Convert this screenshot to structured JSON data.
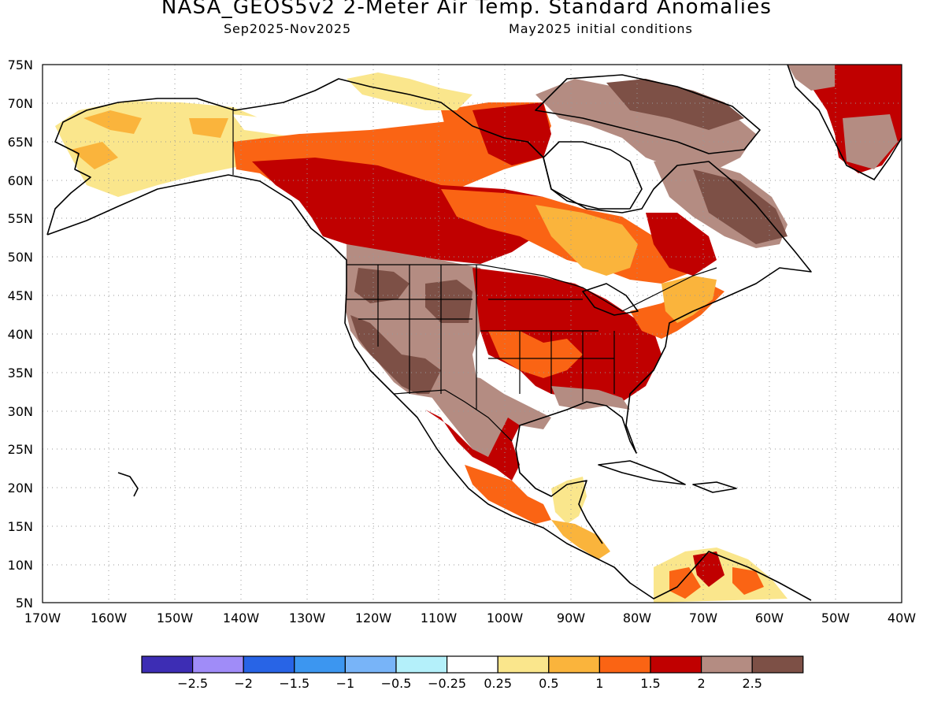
{
  "title": "NASA_GEOS5v2 2-Meter Air Temp. Standard Anomalies",
  "subtitle_left": "Sep2025-Nov2025",
  "subtitle_right": "May2025 initial conditions",
  "map": {
    "lon_range": [
      -170,
      -40
    ],
    "lat_range": [
      5,
      75
    ],
    "lat_ticks": [
      "75N",
      "70N",
      "65N",
      "60N",
      "55N",
      "50N",
      "45N",
      "40N",
      "35N",
      "30N",
      "25N",
      "20N",
      "15N",
      "10N",
      "5N"
    ],
    "lon_ticks": [
      "170W",
      "160W",
      "150W",
      "140W",
      "130W",
      "120W",
      "110W",
      "100W",
      "90W",
      "80W",
      "70W",
      "60W",
      "50W",
      "40W"
    ],
    "grid": "dotted"
  },
  "colorbar": {
    "colors": [
      "#3d2db4",
      "#a08cf8",
      "#2864e6",
      "#3c96f0",
      "#78b4f8",
      "#b4f0fa",
      "#ffffff",
      "#fae68c",
      "#fab43c",
      "#fa6414",
      "#c00000",
      "#b48c82",
      "#7d5046"
    ],
    "labels": [
      "-2.5",
      "-2",
      "-1.5",
      "-1",
      "-0.5",
      "-0.25",
      "0.25",
      "0.5",
      "1",
      "1.5",
      "2",
      "2.5"
    ]
  },
  "legend_colors": {
    "white": "#ffffff",
    "pale": "#fae68c",
    "lightorange": "#fab43c",
    "orange": "#fa6414",
    "red": "#c00000",
    "tan": "#b48c82",
    "brown": "#7d5046"
  }
}
